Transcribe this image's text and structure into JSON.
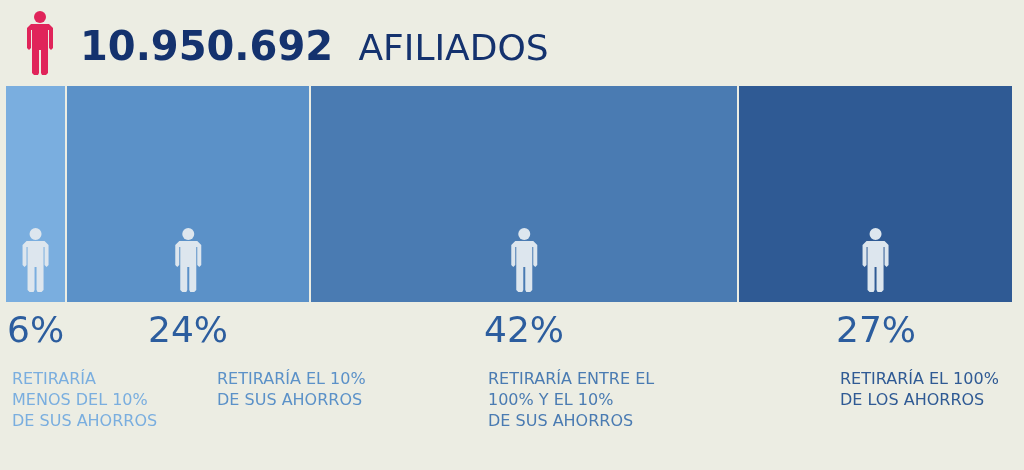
{
  "chart_data": {
    "type": "bar",
    "title": "10.950.692 AFILIADOS",
    "orientation": "horizontal",
    "stacked": true,
    "categories": [
      null
    ],
    "tick_labels": false,
    "legend": false,
    "series": [
      {
        "name": "RETIRARÍA\nMENOS DEL 10%\nDE SUS AHORROS",
        "color": "#7aaedf",
        "values": [
          6
        ],
        "value_labels": [
          "6%"
        ]
      },
      {
        "name": "RETIRARÍA EL 10%\nDE SUS AHORROS",
        "color": "#5b91c8",
        "values": [
          24
        ],
        "value_labels": [
          "24%"
        ]
      },
      {
        "name": "RETIRARÍA ENTRE EL\n100% Y EL 10%\nDE SUS AHORROS",
        "color": "#4a7bb2",
        "values": [
          42
        ],
        "value_labels": [
          "42%"
        ]
      },
      {
        "name": "RETIRARÍA EL 100%\nDE LOS AHORROS",
        "color": "#2f5a94",
        "values": [
          27
        ],
        "value_labels": [
          "27%"
        ]
      }
    ]
  }
}
